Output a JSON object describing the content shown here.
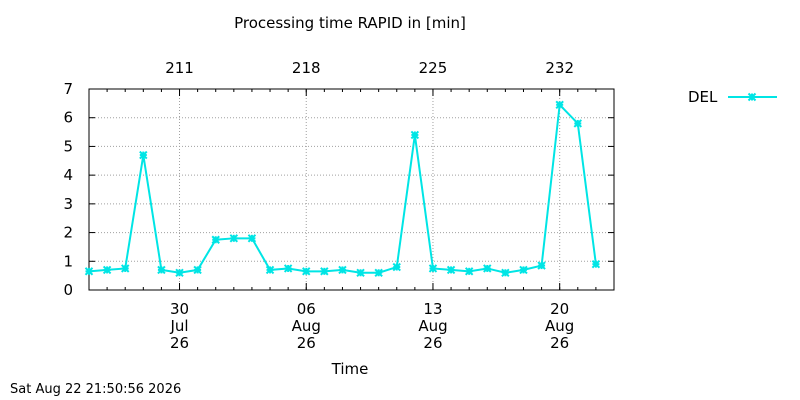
{
  "chart_data": {
    "type": "line",
    "title": "Processing time RAPID in [min]",
    "xlabel": "Time",
    "ylabel": "",
    "ylim": [
      0,
      7
    ],
    "yticks": [
      0,
      1,
      2,
      3,
      4,
      5,
      6,
      7
    ],
    "xlim": [
      "2026-07-25",
      "2026-08-23"
    ],
    "x_ticks_bottom": [
      {
        "date": "2026-07-30",
        "label": [
          "30",
          "Jul",
          "26"
        ]
      },
      {
        "date": "2026-08-06",
        "label": [
          "06",
          "Aug",
          "26"
        ]
      },
      {
        "date": "2026-08-13",
        "label": [
          "13",
          "Aug",
          "26"
        ]
      },
      {
        "date": "2026-08-20",
        "label": [
          "20",
          "Aug",
          "26"
        ]
      }
    ],
    "x_ticks_top": [
      {
        "date": "2026-07-30",
        "label": "211"
      },
      {
        "date": "2026-08-06",
        "label": "218"
      },
      {
        "date": "2026-08-13",
        "label": "225"
      },
      {
        "date": "2026-08-20",
        "label": "232"
      }
    ],
    "grid": true,
    "legend_position": "outside-right",
    "series": [
      {
        "name": "DEL",
        "color": "#00e5e5",
        "marker": "asterisk",
        "x": [
          "2026-07-25",
          "2026-07-26",
          "2026-07-27",
          "2026-07-28",
          "2026-07-29",
          "2026-07-30",
          "2026-07-31",
          "2026-08-01",
          "2026-08-02",
          "2026-08-03",
          "2026-08-04",
          "2026-08-05",
          "2026-08-06",
          "2026-08-07",
          "2026-08-08",
          "2026-08-09",
          "2026-08-10",
          "2026-08-11",
          "2026-08-12",
          "2026-08-13",
          "2026-08-14",
          "2026-08-15",
          "2026-08-16",
          "2026-08-17",
          "2026-08-18",
          "2026-08-19",
          "2026-08-20",
          "2026-08-21",
          "2026-08-22"
        ],
        "values": [
          0.65,
          0.7,
          0.75,
          4.7,
          0.7,
          0.6,
          0.7,
          1.75,
          1.8,
          1.8,
          0.7,
          0.75,
          0.65,
          0.65,
          0.7,
          0.6,
          0.6,
          0.8,
          5.4,
          0.75,
          0.7,
          0.65,
          0.75,
          0.6,
          0.7,
          0.85,
          6.45,
          5.8,
          0.9
        ]
      }
    ]
  },
  "footer": "Sat Aug 22 21:50:56 2026"
}
